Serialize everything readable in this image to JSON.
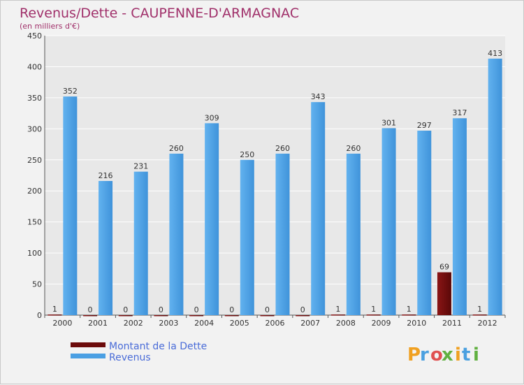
{
  "chart_data": {
    "type": "bar",
    "title": "Revenus/Dette - CAUPENNE-D'ARMAGNAC",
    "subtitle": "(en milliers d'€)",
    "xlabel": "",
    "ylabel": "",
    "ylim": [
      0,
      450
    ],
    "yticks": [
      0,
      50,
      100,
      150,
      200,
      250,
      300,
      350,
      400,
      450
    ],
    "categories": [
      "2000",
      "2001",
      "2002",
      "2003",
      "2004",
      "2005",
      "2006",
      "2007",
      "2008",
      "2009",
      "2010",
      "2011",
      "2012"
    ],
    "series": [
      {
        "name": "Montant de la Dette",
        "color": "#6b0a0a",
        "values": [
          1,
          0,
          0,
          0,
          0,
          0,
          0,
          0,
          1,
          1,
          1,
          69,
          1
        ]
      },
      {
        "name": "Revenus",
        "color": "#4a9fe3",
        "values": [
          352,
          216,
          231,
          260,
          309,
          250,
          260,
          343,
          260,
          301,
          297,
          317,
          413
        ]
      }
    ],
    "grid": true,
    "legend": "bottom-left"
  },
  "logo": {
    "letters": [
      "P",
      "r",
      "o",
      "x",
      "i",
      "t",
      "i"
    ],
    "colors": [
      "#f0a020",
      "#4aa0e0",
      "#e05050",
      "#60b040",
      "#f0a020",
      "#4aa0e0",
      "#60b040"
    ]
  }
}
